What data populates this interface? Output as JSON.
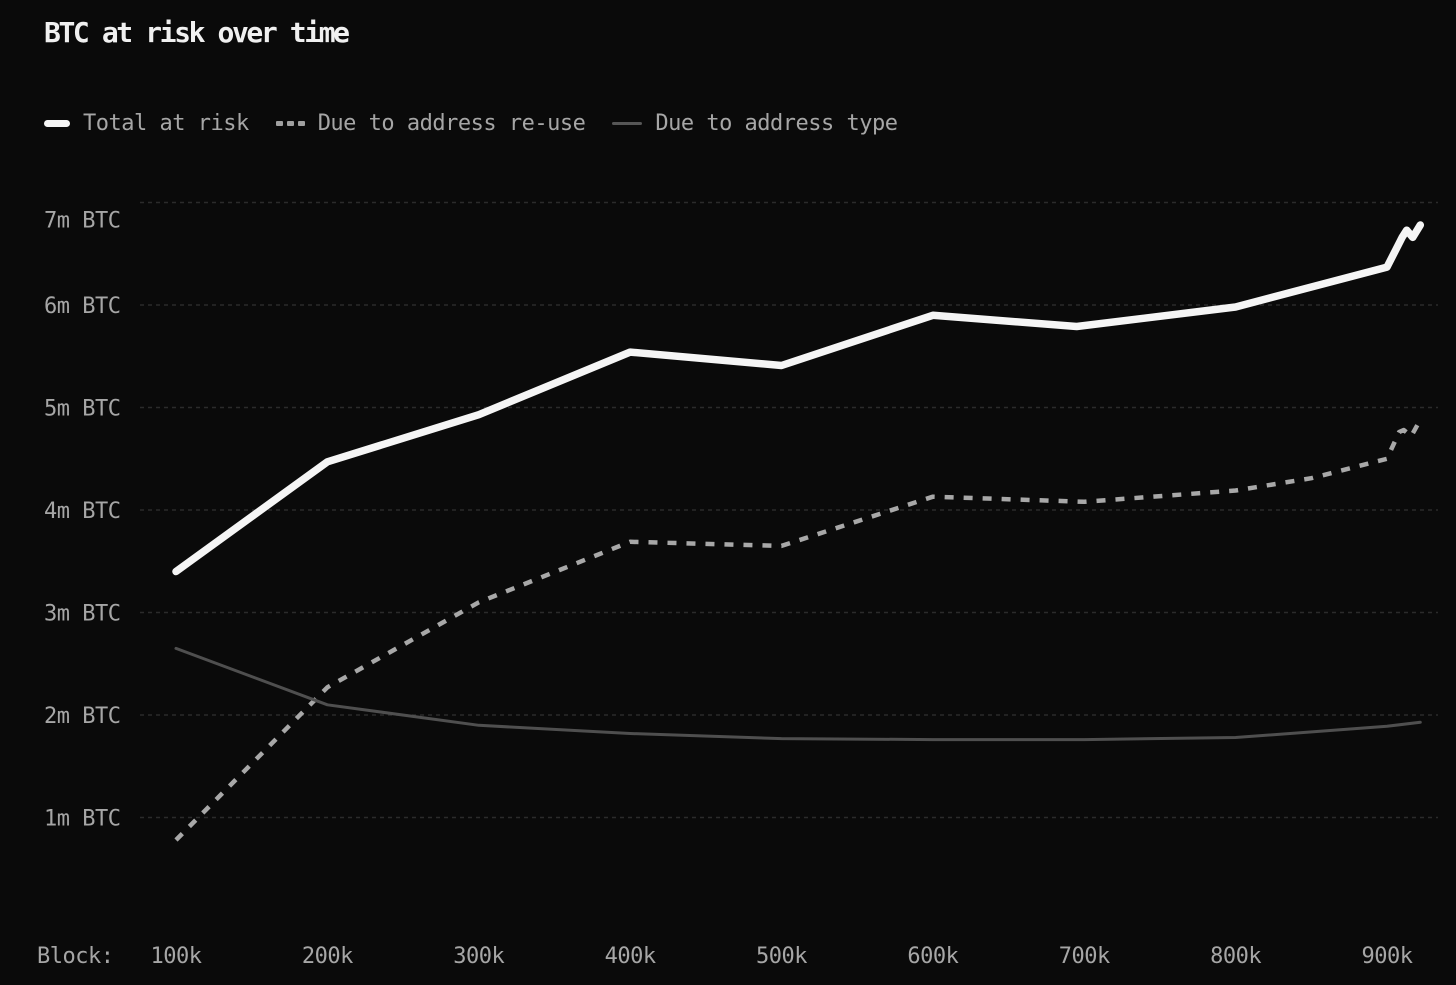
{
  "title": "BTC at risk over time",
  "colors": {
    "background": "#0a0a0a",
    "title_text": "#f0f0f0",
    "axis_text": "#a6a6a6",
    "gridline": "#2b2b2b",
    "series_total": "#f5f5f5",
    "series_reuse": "#a8a8a8",
    "series_type": "#4f4f4f"
  },
  "legend": {
    "items": [
      {
        "label": "Total at risk",
        "swatch": "solid-thick",
        "color": "#f5f5f5"
      },
      {
        "label": "Due to address re-use",
        "swatch": "dashed",
        "color": "#a8a8a8"
      },
      {
        "label": "Due to address type",
        "swatch": "solid-thin",
        "color": "#4f4f4f"
      }
    ]
  },
  "chart_data": {
    "type": "line",
    "title": "BTC at risk over time",
    "xlabel": "Block:",
    "ylabel": "",
    "x_unit": "thousand blocks",
    "y_unit": "million BTC",
    "grid": "horizontal-dashed",
    "legend_position": "top-left",
    "x_axis": {
      "prefix_label": "Block:",
      "ticks": [
        100,
        200,
        300,
        400,
        500,
        600,
        700,
        800,
        900
      ],
      "tick_labels": [
        "100k",
        "200k",
        "300k",
        "400k",
        "500k",
        "600k",
        "700k",
        "800k",
        "900k"
      ],
      "range_shown": [
        75,
        933
      ]
    },
    "y_axis": {
      "ticks": [
        1,
        2,
        3,
        4,
        5,
        6,
        7
      ],
      "tick_labels": [
        "1m BTC",
        "2m BTC",
        "3m BTC",
        "4m BTC",
        "5m BTC",
        "6m BTC",
        "7m BTC"
      ],
      "range_shown": [
        0,
        7.2
      ]
    },
    "series": [
      {
        "name": "Total at risk",
        "line": "solid",
        "width": "thick",
        "color": "#f5f5f5",
        "points": [
          [
            100,
            3.4
          ],
          [
            200,
            4.47
          ],
          [
            300,
            4.93
          ],
          [
            400,
            5.54
          ],
          [
            500,
            5.41
          ],
          [
            600,
            5.9
          ],
          [
            695,
            5.79
          ],
          [
            800,
            5.98
          ],
          [
            900,
            6.37
          ],
          [
            910,
            6.66
          ],
          [
            913,
            6.73
          ],
          [
            917,
            6.66
          ],
          [
            922,
            6.78
          ]
        ]
      },
      {
        "name": "Due to address re-use",
        "line": "dashed",
        "width": "medium",
        "color": "#a8a8a8",
        "points": [
          [
            100,
            0.78
          ],
          [
            200,
            2.27
          ],
          [
            300,
            3.1
          ],
          [
            400,
            3.69
          ],
          [
            500,
            3.65
          ],
          [
            600,
            4.13
          ],
          [
            700,
            4.08
          ],
          [
            800,
            4.19
          ],
          [
            850,
            4.31
          ],
          [
            900,
            4.5
          ],
          [
            908,
            4.76
          ],
          [
            911,
            4.78
          ],
          [
            916,
            4.72
          ],
          [
            922,
            4.88
          ]
        ]
      },
      {
        "name": "Due to address type",
        "line": "solid",
        "width": "thin",
        "color": "#4f4f4f",
        "points": [
          [
            100,
            2.65
          ],
          [
            200,
            2.1
          ],
          [
            300,
            1.9
          ],
          [
            400,
            1.82
          ],
          [
            500,
            1.77
          ],
          [
            600,
            1.76
          ],
          [
            700,
            1.76
          ],
          [
            800,
            1.78
          ],
          [
            900,
            1.89
          ],
          [
            922,
            1.93
          ]
        ]
      }
    ]
  }
}
